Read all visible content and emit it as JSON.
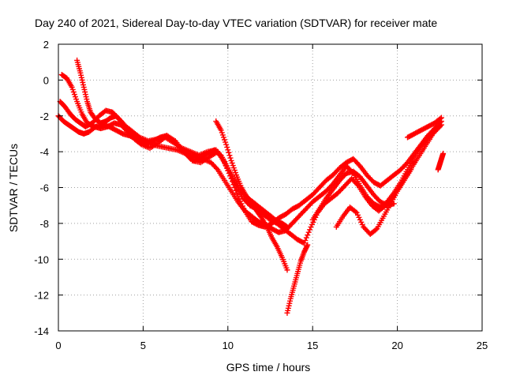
{
  "chart_data": {
    "type": "scatter",
    "title": "Day 240 of 2021, Sidereal Day-to-day VTEC variation (SDTVAR) for receiver mate",
    "xlabel": "GPS time / hours",
    "ylabel": "SDTVAR / TECUs",
    "xlim": [
      0,
      25
    ],
    "ylim": [
      -14,
      2
    ],
    "xticks": [
      0,
      5,
      10,
      15,
      20,
      25
    ],
    "yticks": [
      -14,
      -12,
      -10,
      -8,
      -6,
      -4,
      -2,
      0,
      2
    ],
    "xtick_labels": [
      "0",
      "5",
      "10",
      "15",
      "20",
      "25"
    ],
    "ytick_labels": [
      "-14",
      "-12",
      "-10",
      "-8",
      "-6",
      "-4",
      "-2",
      "0",
      "2"
    ],
    "grid": true,
    "marker": "+",
    "color": "#ff0000",
    "series": [
      {
        "x": [
          0.0,
          0.3,
          0.6,
          0.9,
          1.2,
          1.5,
          1.8,
          2.2,
          2.6,
          3.0,
          3.4,
          3.8,
          4.2,
          4.6,
          5.0,
          5.5,
          6.0,
          6.5,
          7.0,
          7.5,
          8.0,
          8.5,
          9.0,
          9.4,
          9.8,
          10.2,
          10.6,
          11.0,
          11.4,
          11.8,
          12.2,
          12.6,
          13.0,
          13.4,
          13.8,
          14.2,
          14.6,
          15.0,
          15.4,
          15.8,
          16.2,
          16.6,
          17.0,
          17.4,
          17.8,
          18.2,
          18.6,
          19.0,
          19.4,
          19.8,
          20.2,
          20.6,
          21.0,
          21.4,
          21.8,
          22.2,
          22.6
        ],
        "y": [
          -2.0,
          -2.3,
          -2.5,
          -2.7,
          -2.9,
          -3.0,
          -2.9,
          -2.6,
          -2.5,
          -2.6,
          -2.8,
          -3.0,
          -3.1,
          -3.3,
          -3.5,
          -3.6,
          -3.7,
          -3.8,
          -3.9,
          -4.1,
          -4.3,
          -4.4,
          -4.6,
          -5.0,
          -5.6,
          -6.2,
          -6.8,
          -7.3,
          -7.6,
          -7.9,
          -8.1,
          -8.3,
          -8.5,
          -8.4,
          -8.0,
          -7.6,
          -7.2,
          -6.8,
          -6.5,
          -6.2,
          -5.8,
          -5.3,
          -4.8,
          -5.2,
          -5.9,
          -6.5,
          -6.9,
          -7.1,
          -6.8,
          -6.3,
          -5.7,
          -5.0,
          -4.3,
          -3.7,
          -3.2,
          -2.8,
          -2.5
        ]
      },
      {
        "x": [
          0.1,
          0.4,
          0.7,
          1.0,
          1.3,
          1.6,
          2.0,
          2.4,
          2.8,
          3.2,
          3.6,
          4.0,
          4.4,
          4.8,
          5.3,
          5.8,
          6.3,
          6.8,
          7.3,
          7.8,
          8.3,
          8.8,
          9.3,
          9.7,
          10.1,
          10.5,
          10.9,
          11.3,
          11.7,
          12.1,
          12.5,
          12.9,
          13.3,
          13.7,
          14.1,
          14.5,
          14.9,
          15.3,
          15.7,
          16.1,
          16.5,
          16.9,
          17.3,
          17.7,
          18.1,
          18.5,
          18.9,
          19.3,
          19.7,
          20.1,
          20.5,
          20.9,
          21.3,
          21.7,
          22.1,
          22.5
        ],
        "y": [
          -1.2,
          -1.5,
          -1.9,
          -2.2,
          -2.4,
          -2.6,
          -2.4,
          -2.0,
          -1.7,
          -1.8,
          -2.2,
          -2.6,
          -2.9,
          -3.2,
          -3.4,
          -3.3,
          -3.2,
          -3.5,
          -3.8,
          -4.0,
          -4.2,
          -4.0,
          -3.9,
          -4.4,
          -5.2,
          -6.0,
          -6.6,
          -7.0,
          -7.2,
          -7.5,
          -7.8,
          -8.0,
          -8.3,
          -8.6,
          -8.9,
          -9.1,
          -8.2,
          -7.4,
          -6.9,
          -6.6,
          -6.3,
          -5.9,
          -5.5,
          -5.9,
          -6.5,
          -7.0,
          -7.3,
          -7.0,
          -6.6,
          -6.0,
          -5.4,
          -4.8,
          -4.2,
          -3.6,
          -3.0,
          -2.6
        ]
      },
      {
        "x": [
          0.2,
          0.5,
          0.8,
          1.1,
          1.4,
          1.7,
          2.1,
          2.5,
          2.9,
          3.3,
          3.7,
          4.1,
          4.5,
          4.9,
          5.4,
          5.9,
          6.4,
          6.9,
          7.4,
          7.9,
          8.4,
          8.9,
          9.4,
          9.8,
          10.2,
          10.6,
          11.0,
          11.4,
          11.8,
          12.2,
          12.6,
          13.0,
          13.4,
          13.8,
          14.2,
          14.6,
          15.0,
          15.4,
          15.8,
          16.2,
          16.6,
          17.0,
          17.4,
          17.8,
          18.2,
          18.6,
          19.0,
          19.4,
          19.8,
          20.2,
          20.6,
          21.0,
          21.4,
          21.8,
          22.2,
          22.6
        ],
        "y": [
          0.3,
          0.1,
          -0.4,
          -1.2,
          -1.9,
          -2.4,
          -2.6,
          -2.7,
          -2.6,
          -2.4,
          -2.5,
          -2.9,
          -3.3,
          -3.6,
          -3.8,
          -3.5,
          -3.1,
          -3.4,
          -4.0,
          -4.5,
          -4.6,
          -4.3,
          -4.0,
          -4.6,
          -5.5,
          -6.5,
          -7.3,
          -7.9,
          -8.1,
          -8.2,
          -8.0,
          -7.7,
          -7.5,
          -7.2,
          -7.0,
          -6.7,
          -6.4,
          -6.0,
          -5.6,
          -5.3,
          -4.9,
          -4.6,
          -4.4,
          -4.8,
          -5.3,
          -5.7,
          -5.9,
          -5.6,
          -5.3,
          -5.0,
          -4.6,
          -4.1,
          -3.6,
          -3.1,
          -2.7,
          -2.3
        ]
      },
      {
        "x": [
          1.1,
          1.3,
          1.5,
          1.7,
          1.9,
          2.2,
          2.5,
          2.8,
          3.1,
          3.4,
          3.7,
          4.0,
          4.4,
          4.8,
          5.2,
          5.6,
          6.0,
          6.4,
          6.8,
          7.2,
          7.6,
          8.0,
          8.4,
          8.8,
          9.2,
          9.6,
          10.0,
          10.4,
          10.8,
          11.2,
          11.6,
          12.0,
          12.4,
          12.8,
          13.2,
          13.5
        ],
        "y": [
          1.1,
          0.4,
          -0.4,
          -1.2,
          -1.8,
          -2.2,
          -2.4,
          -2.3,
          -2.1,
          -2.0,
          -2.3,
          -2.7,
          -3.0,
          -3.3,
          -3.5,
          -3.4,
          -3.2,
          -3.1,
          -3.4,
          -3.8,
          -4.2,
          -4.5,
          -4.4,
          -4.1,
          -3.9,
          -4.2,
          -4.9,
          -5.6,
          -6.2,
          -6.6,
          -6.9,
          -7.2,
          -7.5,
          -7.8,
          -8.0,
          -8.2
        ]
      },
      {
        "x": [
          9.3,
          9.6,
          9.9,
          10.2,
          10.5,
          10.8,
          11.1,
          11.4,
          11.7,
          12.0,
          12.3,
          12.6,
          12.9,
          13.2,
          13.5
        ],
        "y": [
          -2.3,
          -2.8,
          -3.6,
          -4.5,
          -5.3,
          -6.0,
          -6.5,
          -6.9,
          -7.3,
          -7.7,
          -8.2,
          -8.8,
          -9.3,
          -9.9,
          -10.6
        ]
      },
      {
        "x": [
          13.5,
          13.7,
          13.9,
          14.1,
          14.3,
          14.5,
          14.7
        ],
        "y": [
          -13.0,
          -12.2,
          -11.5,
          -10.8,
          -10.1,
          -9.6,
          -9.2
        ]
      },
      {
        "x": [
          15.0,
          15.4,
          15.8,
          16.2,
          16.6,
          17.0,
          17.4,
          17.8,
          18.2,
          18.6,
          19.0,
          19.4,
          19.8
        ],
        "y": [
          -7.8,
          -7.2,
          -6.6,
          -6.1,
          -5.6,
          -5.2,
          -5.1,
          -5.4,
          -5.9,
          -6.4,
          -6.8,
          -7.0,
          -6.9
        ]
      },
      {
        "x": [
          16.4,
          16.8,
          17.2,
          17.6,
          18.0,
          18.4,
          18.8,
          19.2,
          19.6,
          20.0,
          20.4,
          20.8
        ],
        "y": [
          -8.2,
          -7.6,
          -7.1,
          -7.4,
          -8.2,
          -8.6,
          -8.3,
          -7.6,
          -6.9,
          -6.2,
          -5.6,
          -5.0
        ]
      },
      {
        "x": [
          20.6,
          21.0,
          21.4,
          21.8,
          22.2,
          22.6
        ],
        "y": [
          -3.2,
          -3.0,
          -2.8,
          -2.6,
          -2.4,
          -2.1
        ]
      },
      {
        "x": [
          22.4,
          22.5,
          22.6,
          22.7
        ],
        "y": [
          -5.0,
          -4.7,
          -4.4,
          -4.1
        ]
      }
    ]
  }
}
